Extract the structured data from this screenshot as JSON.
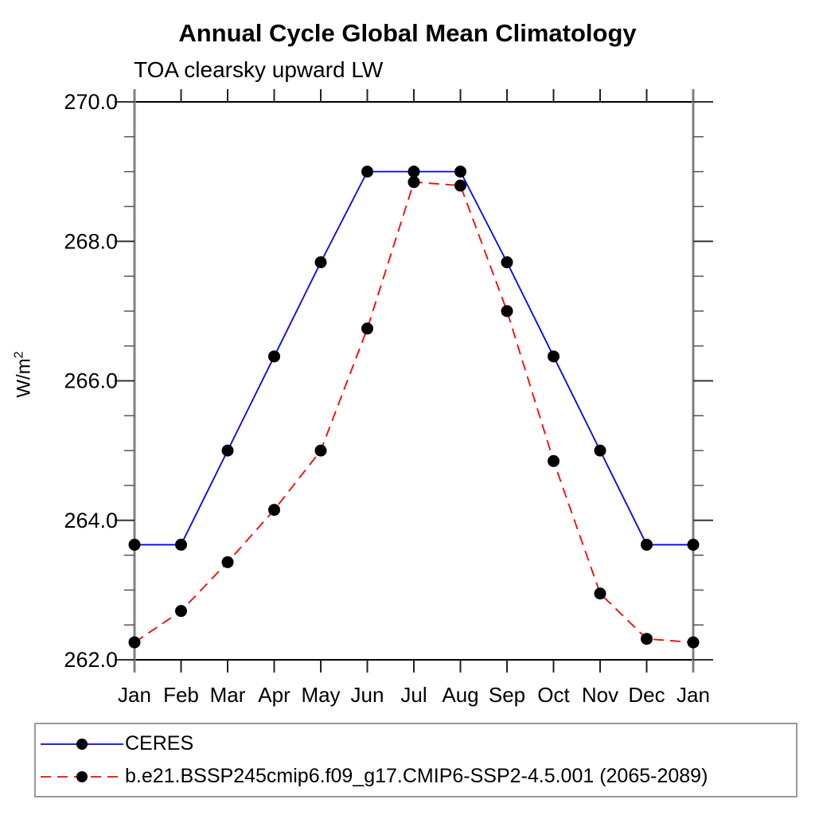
{
  "chart_data": {
    "type": "line",
    "title": "Annual Cycle Global Mean Climatology",
    "subtitle": "TOA clearsky upward LW",
    "ylabel_base": "W/m",
    "ylabel_exp": "2",
    "x_categories": [
      "Jan",
      "Feb",
      "Mar",
      "Apr",
      "May",
      "Jun",
      "Jul",
      "Aug",
      "Sep",
      "Oct",
      "Nov",
      "Dec",
      "Jan"
    ],
    "y_tick_labels": [
      "262.0",
      "264.0",
      "266.0",
      "268.0",
      "270.0"
    ],
    "y_ticks": [
      262.0,
      264.0,
      266.0,
      268.0,
      270.0
    ],
    "y_minor_step": 0.5,
    "ylim": [
      262.0,
      270.0
    ],
    "grid": false,
    "legend_position": "bottom-box",
    "marker_color": "#000000",
    "axis_frame_color": "#000000",
    "side_axis_color": "#808080",
    "series": [
      {
        "name": "CERES",
        "color": "#0000ff",
        "style": "solid",
        "marker": "filled-circle",
        "values": [
          263.65,
          263.65,
          265.0,
          266.35,
          267.7,
          269.0,
          269.0,
          269.0,
          267.7,
          266.35,
          265.0,
          263.65,
          263.65
        ]
      },
      {
        "name": "b.e21.BSSP245cmip6.f09_g17.CMIP6-SSP2-4.5.001 (2065-2089)",
        "color": "#ff0000",
        "style": "dashed",
        "marker": "filled-circle",
        "values": [
          262.25,
          262.7,
          263.4,
          264.15,
          265.0,
          266.75,
          268.85,
          268.8,
          267.0,
          264.85,
          262.95,
          262.3,
          262.25
        ]
      }
    ]
  }
}
